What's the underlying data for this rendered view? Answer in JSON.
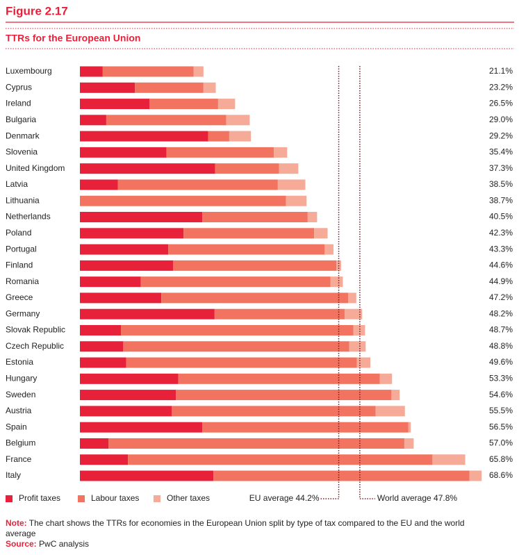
{
  "figure_label": "Figure 2.17",
  "chart_data": {
    "type": "stacked-bar-horizontal",
    "title": "TTRs for the European Union",
    "categories": [
      "Luxembourg",
      "Cyprus",
      "Ireland",
      "Bulgaria",
      "Denmark",
      "Slovenia",
      "United Kingdom",
      "Latvia",
      "Lithuania",
      "Netherlands",
      "Poland",
      "Portugal",
      "Finland",
      "Romania",
      "Greece",
      "Germany",
      "Slovak Republic",
      "Czech Republic",
      "Estonia",
      "Hungary",
      "Sweden",
      "Austria",
      "Spain",
      "Belgium",
      "France",
      "Italy"
    ],
    "series": [
      {
        "name": "Profit taxes",
        "color": "#e8213a",
        "values": [
          3.9,
          9.4,
          11.9,
          4.5,
          21.9,
          14.8,
          23.1,
          6.5,
          0,
          20.9,
          17.7,
          15.1,
          15.9,
          10.4,
          13.9,
          23.0,
          7.0,
          7.4,
          7.9,
          16.8,
          16.4,
          15.7,
          20.9,
          4.9,
          8.2,
          22.8
        ]
      },
      {
        "name": "Labour taxes",
        "color": "#f2735f",
        "values": [
          15.5,
          11.7,
          11.7,
          20.5,
          3.6,
          18.3,
          10.9,
          27.3,
          35.2,
          18.0,
          22.3,
          26.7,
          27.9,
          32.4,
          31.9,
          22.2,
          39.7,
          38.6,
          39.4,
          34.4,
          36.8,
          34.8,
          35.2,
          50.5,
          52.0,
          43.7
        ]
      },
      {
        "name": "Other taxes",
        "color": "#f6aa98",
        "values": [
          1.7,
          2.1,
          2.9,
          4.0,
          3.7,
          2.3,
          3.3,
          4.7,
          3.5,
          1.6,
          2.3,
          1.5,
          0.8,
          2.1,
          1.4,
          3.0,
          2.0,
          2.8,
          2.3,
          2.1,
          1.4,
          5.0,
          0.4,
          1.6,
          5.6,
          2.1
        ]
      }
    ],
    "totals": {
      "values": [
        21.1,
        23.2,
        26.5,
        29.0,
        29.2,
        35.4,
        37.3,
        38.5,
        38.7,
        40.5,
        42.3,
        43.3,
        44.6,
        44.9,
        47.2,
        48.2,
        48.7,
        48.8,
        49.6,
        53.3,
        54.6,
        55.5,
        56.5,
        57.0,
        65.8,
        68.6
      ],
      "value_labels": [
        "21.1%",
        "23.2%",
        "26.5%",
        "29.0%",
        "29.2%",
        "35.4%",
        "37.3%",
        "38.5%",
        "38.7%",
        "40.5%",
        "42.3%",
        "43.3%",
        "44.6%",
        "44.9%",
        "47.2%",
        "48.2%",
        "48.7%",
        "48.8%",
        "49.6%",
        "53.3%",
        "54.6%",
        "55.5%",
        "56.5%",
        "57.0%",
        "65.8%",
        "68.6%"
      ]
    },
    "reference_lines": [
      {
        "value": 44.2,
        "label": "EU average 44.2%"
      },
      {
        "value": 47.8,
        "label": "World average 47.8%"
      }
    ],
    "xlim": [
      0,
      70
    ]
  },
  "note_label": "Note:",
  "note": "The chart shows the TTRs for economies in the European Union split by type of tax compared to the EU and the world average",
  "source_label": "Source:",
  "source": "PwC analysis"
}
